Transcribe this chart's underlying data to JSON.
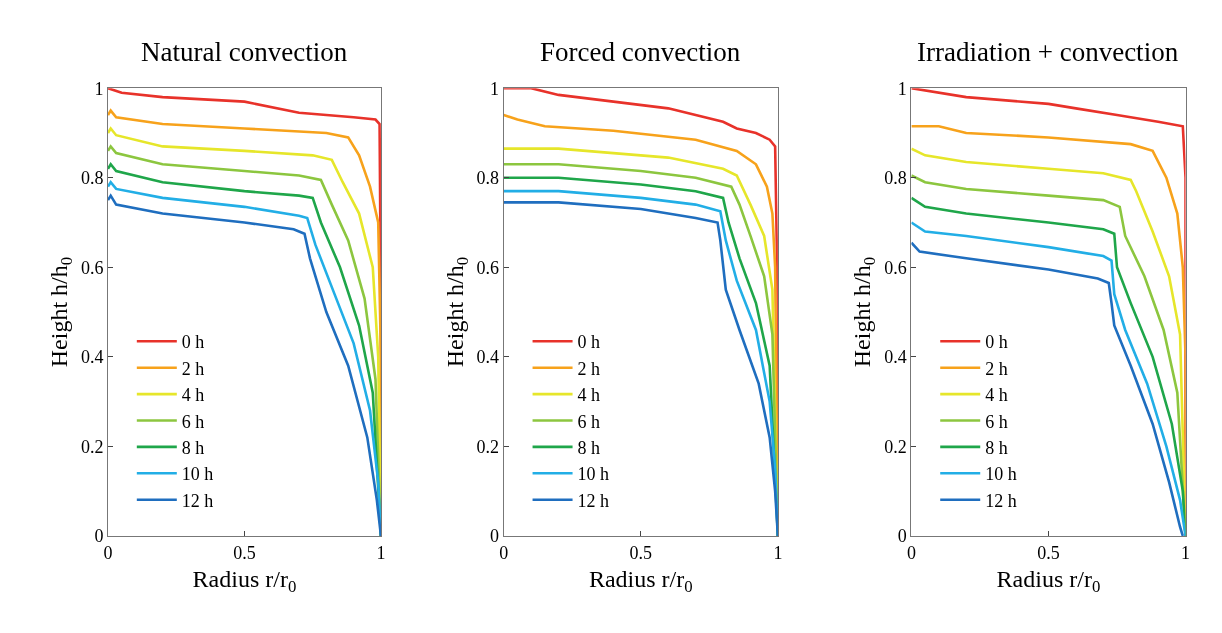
{
  "chart_data": [
    {
      "type": "line",
      "title": "Natural convection",
      "xlabel": "Radius r/r$_{0}$",
      "ylabel": "Height h/h$_{0}$",
      "xlim": [
        0,
        1
      ],
      "xticks": [
        0,
        0.5,
        1
      ],
      "ylim": [
        0,
        1
      ],
      "yticks": [
        0,
        0.2,
        0.4,
        0.6,
        0.8,
        1
      ],
      "legend": "bottom left",
      "series": [
        {
          "name": "0 h",
          "color": "#e8322a",
          "x": [
            0,
            0.05,
            0.2,
            0.5,
            0.7,
            0.9,
            0.98,
            0.995,
            1,
            1
          ],
          "values": [
            1,
            0.99,
            0.98,
            0.97,
            0.945,
            0.935,
            0.93,
            0.92,
            0.5,
            0
          ]
        },
        {
          "name": "2 h",
          "color": "#f7a21b",
          "x": [
            0,
            0.01,
            0.03,
            0.2,
            0.5,
            0.8,
            0.88,
            0.92,
            0.96,
            0.99,
            1,
            1
          ],
          "values": [
            0.94,
            0.95,
            0.935,
            0.92,
            0.91,
            0.9,
            0.89,
            0.85,
            0.78,
            0.7,
            0.4,
            0
          ]
        },
        {
          "name": "4 h",
          "color": "#e6e62a",
          "x": [
            0,
            0.01,
            0.03,
            0.2,
            0.5,
            0.75,
            0.82,
            0.86,
            0.92,
            0.97,
            0.99,
            1
          ],
          "values": [
            0.9,
            0.91,
            0.895,
            0.87,
            0.86,
            0.85,
            0.84,
            0.79,
            0.72,
            0.6,
            0.4,
            0
          ]
        },
        {
          "name": "6 h",
          "color": "#8cc63f",
          "x": [
            0,
            0.01,
            0.03,
            0.2,
            0.5,
            0.7,
            0.78,
            0.82,
            0.88,
            0.94,
            0.98,
            1
          ],
          "values": [
            0.86,
            0.87,
            0.855,
            0.83,
            0.815,
            0.805,
            0.795,
            0.74,
            0.66,
            0.53,
            0.35,
            0
          ]
        },
        {
          "name": "8 h",
          "color": "#1fa64a",
          "x": [
            0,
            0.01,
            0.03,
            0.2,
            0.5,
            0.7,
            0.75,
            0.78,
            0.85,
            0.92,
            0.97,
            1
          ],
          "values": [
            0.82,
            0.83,
            0.815,
            0.79,
            0.77,
            0.76,
            0.755,
            0.7,
            0.6,
            0.47,
            0.32,
            0
          ]
        },
        {
          "name": "10 h",
          "color": "#22aee6",
          "x": [
            0,
            0.01,
            0.03,
            0.2,
            0.5,
            0.7,
            0.73,
            0.76,
            0.83,
            0.9,
            0.96,
            0.99,
            1
          ],
          "values": [
            0.78,
            0.79,
            0.775,
            0.755,
            0.735,
            0.715,
            0.71,
            0.65,
            0.54,
            0.43,
            0.28,
            0.12,
            0
          ]
        },
        {
          "name": "12 h",
          "color": "#1f6ebf",
          "x": [
            0,
            0.01,
            0.03,
            0.2,
            0.5,
            0.68,
            0.72,
            0.74,
            0.8,
            0.88,
            0.95,
            0.985,
            1
          ],
          "values": [
            0.75,
            0.76,
            0.74,
            0.72,
            0.7,
            0.685,
            0.675,
            0.62,
            0.5,
            0.38,
            0.22,
            0.08,
            0
          ]
        }
      ]
    },
    {
      "type": "line",
      "title": "Forced convection",
      "xlabel": "Radius r/r$_{0}$",
      "ylabel": "Height h/h$_{0}$",
      "xlim": [
        0,
        1
      ],
      "xticks": [
        0,
        0.5,
        1
      ],
      "ylim": [
        0,
        1
      ],
      "yticks": [
        0,
        0.2,
        0.4,
        0.6,
        0.8,
        1
      ],
      "legend": "bottom left",
      "series": [
        {
          "name": "0 h",
          "color": "#e8322a",
          "x": [
            0,
            0.1,
            0.2,
            0.4,
            0.6,
            0.8,
            0.85,
            0.92,
            0.97,
            0.99,
            1,
            1
          ],
          "values": [
            1,
            1,
            0.985,
            0.97,
            0.955,
            0.925,
            0.91,
            0.9,
            0.885,
            0.87,
            0.5,
            0
          ]
        },
        {
          "name": "2 h",
          "color": "#f7a21b",
          "x": [
            0,
            0.05,
            0.15,
            0.4,
            0.7,
            0.85,
            0.92,
            0.96,
            0.98,
            0.99,
            1
          ],
          "values": [
            0.94,
            0.93,
            0.915,
            0.905,
            0.885,
            0.86,
            0.83,
            0.78,
            0.72,
            0.6,
            0
          ]
        },
        {
          "name": "4 h",
          "color": "#e6e62a",
          "x": [
            0,
            0.2,
            0.4,
            0.6,
            0.8,
            0.85,
            0.9,
            0.95,
            0.98,
            1
          ],
          "values": [
            0.865,
            0.865,
            0.855,
            0.845,
            0.82,
            0.805,
            0.74,
            0.67,
            0.55,
            0
          ]
        },
        {
          "name": "6 h",
          "color": "#8cc63f",
          "x": [
            0,
            0.2,
            0.5,
            0.7,
            0.83,
            0.86,
            0.9,
            0.95,
            0.98,
            1
          ],
          "values": [
            0.83,
            0.83,
            0.815,
            0.8,
            0.78,
            0.74,
            0.67,
            0.58,
            0.45,
            0
          ]
        },
        {
          "name": "8 h",
          "color": "#1fa64a",
          "x": [
            0,
            0.2,
            0.5,
            0.7,
            0.8,
            0.82,
            0.86,
            0.92,
            0.97,
            1
          ],
          "values": [
            0.8,
            0.8,
            0.785,
            0.77,
            0.755,
            0.7,
            0.62,
            0.52,
            0.38,
            0
          ]
        },
        {
          "name": "10 h",
          "color": "#22aee6",
          "x": [
            0,
            0.2,
            0.5,
            0.7,
            0.79,
            0.81,
            0.85,
            0.92,
            0.97,
            0.99,
            1
          ],
          "values": [
            0.77,
            0.77,
            0.755,
            0.74,
            0.725,
            0.66,
            0.57,
            0.46,
            0.3,
            0.15,
            0
          ]
        },
        {
          "name": "12 h",
          "color": "#1f6ebf",
          "x": [
            0,
            0.2,
            0.5,
            0.7,
            0.78,
            0.79,
            0.81,
            0.86,
            0.93,
            0.97,
            0.99,
            1
          ],
          "values": [
            0.745,
            0.745,
            0.73,
            0.71,
            0.7,
            0.66,
            0.55,
            0.46,
            0.34,
            0.22,
            0.1,
            0
          ]
        }
      ]
    },
    {
      "type": "line",
      "title": "Irradiation + convection",
      "xlabel": "Radius r/r$_{0}$",
      "ylabel": "Height h/h$_{0}$",
      "xlim": [
        0,
        1
      ],
      "xticks": [
        0,
        0.5,
        1
      ],
      "ylim": [
        0,
        1
      ],
      "yticks": [
        0,
        0.2,
        0.4,
        0.6,
        0.8,
        1
      ],
      "legend": "bottom left",
      "series": [
        {
          "name": "0 h",
          "color": "#e8322a",
          "x": [
            0,
            0.2,
            0.5,
            0.6,
            0.75,
            0.9,
            0.99,
            1,
            1
          ],
          "values": [
            1,
            0.98,
            0.965,
            0.955,
            0.94,
            0.925,
            0.915,
            0.8,
            0
          ]
        },
        {
          "name": "2 h",
          "color": "#f7a21b",
          "x": [
            0,
            0.1,
            0.2,
            0.5,
            0.8,
            0.88,
            0.93,
            0.97,
            0.99,
            1,
            1
          ],
          "values": [
            0.915,
            0.915,
            0.9,
            0.89,
            0.875,
            0.86,
            0.8,
            0.72,
            0.6,
            0.4,
            0
          ]
        },
        {
          "name": "4 h",
          "color": "#e6e62a",
          "x": [
            0,
            0.05,
            0.2,
            0.5,
            0.7,
            0.8,
            0.82,
            0.88,
            0.94,
            0.98,
            1
          ],
          "values": [
            0.865,
            0.85,
            0.835,
            0.82,
            0.81,
            0.795,
            0.77,
            0.68,
            0.58,
            0.45,
            0
          ]
        },
        {
          "name": "6 h",
          "color": "#8cc63f",
          "x": [
            0,
            0.05,
            0.2,
            0.5,
            0.7,
            0.76,
            0.78,
            0.85,
            0.92,
            0.97,
            1
          ],
          "values": [
            0.805,
            0.79,
            0.775,
            0.76,
            0.75,
            0.735,
            0.67,
            0.58,
            0.46,
            0.32,
            0
          ]
        },
        {
          "name": "8 h",
          "color": "#1fa64a",
          "x": [
            0,
            0.05,
            0.2,
            0.5,
            0.7,
            0.74,
            0.75,
            0.8,
            0.88,
            0.95,
            0.99,
            1
          ],
          "values": [
            0.755,
            0.735,
            0.72,
            0.7,
            0.685,
            0.675,
            0.6,
            0.52,
            0.4,
            0.25,
            0.1,
            0
          ]
        },
        {
          "name": "10 h",
          "color": "#22aee6",
          "x": [
            0,
            0.05,
            0.2,
            0.5,
            0.7,
            0.73,
            0.74,
            0.78,
            0.86,
            0.93,
            0.98,
            1
          ],
          "values": [
            0.7,
            0.68,
            0.67,
            0.645,
            0.625,
            0.615,
            0.54,
            0.46,
            0.34,
            0.2,
            0.08,
            0
          ]
        },
        {
          "name": "12 h",
          "color": "#1f6ebf",
          "x": [
            0,
            0.03,
            0.2,
            0.5,
            0.68,
            0.72,
            0.73,
            0.74,
            0.8,
            0.88,
            0.94,
            0.98,
            0.99
          ],
          "values": [
            0.655,
            0.635,
            0.62,
            0.595,
            0.575,
            0.565,
            0.52,
            0.47,
            0.38,
            0.25,
            0.12,
            0.02,
            0
          ]
        }
      ]
    }
  ]
}
